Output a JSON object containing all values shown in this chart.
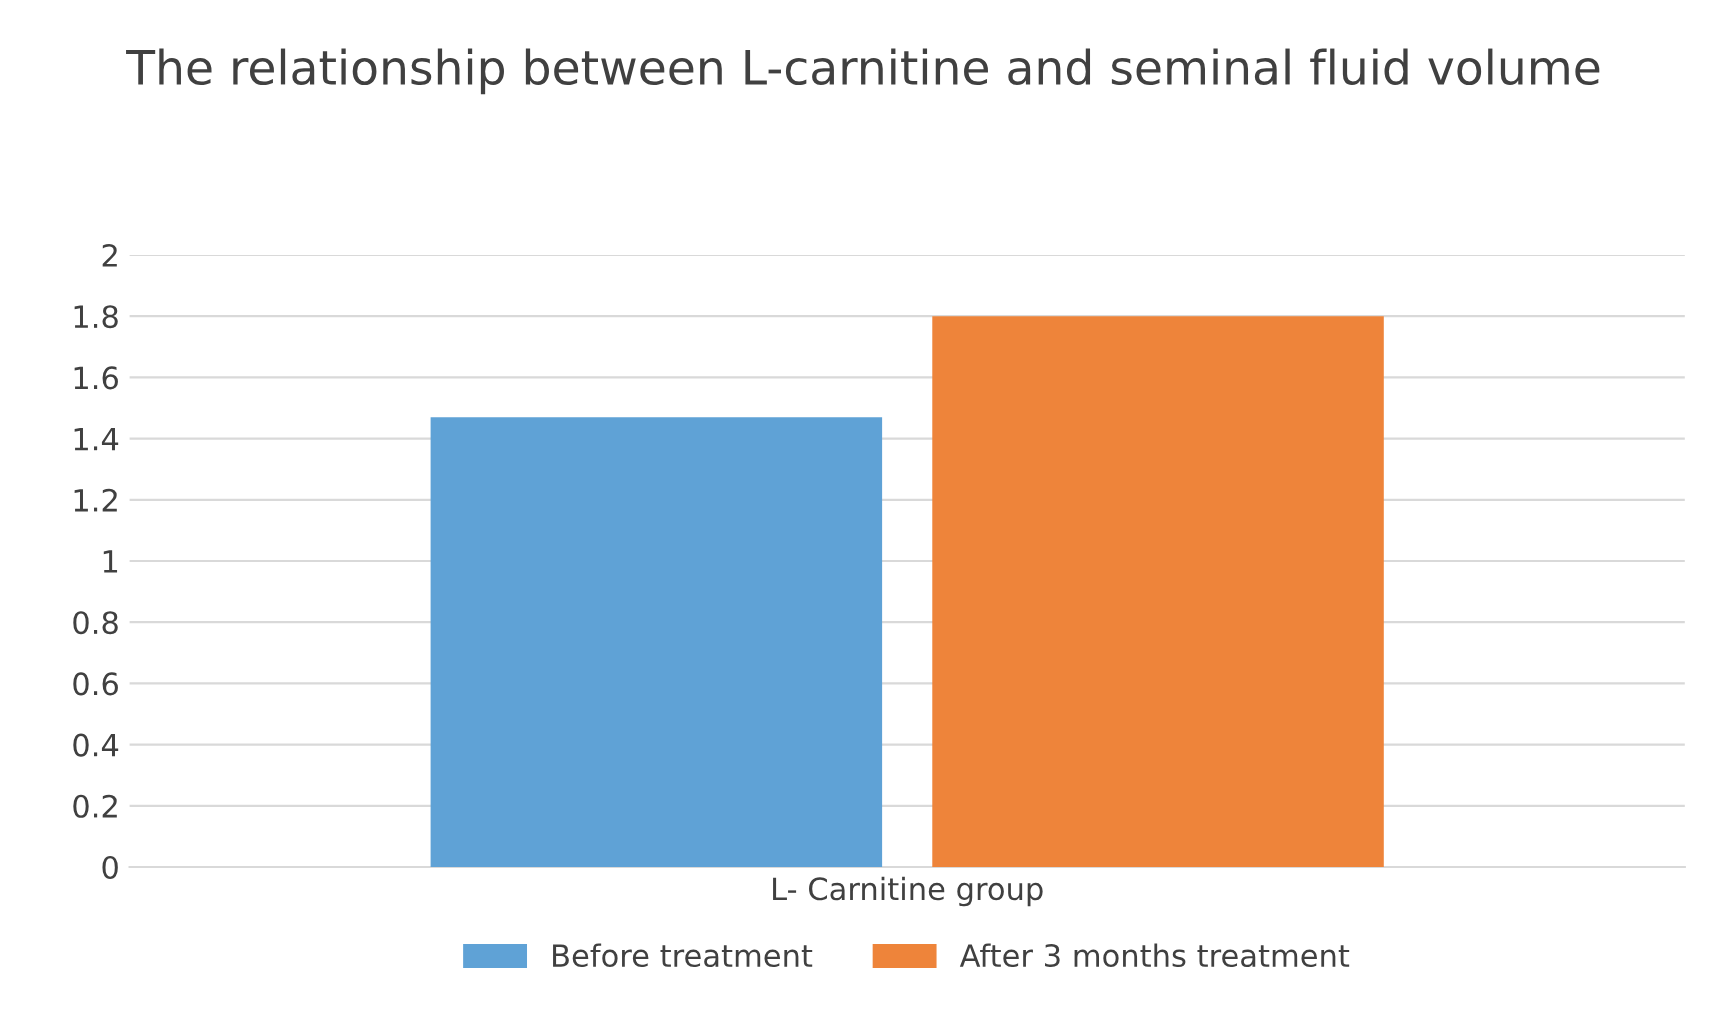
{
  "chart_data": {
    "type": "bar",
    "title": "The relationship between L-carnitine and seminal fluid volume",
    "categories": [
      "L- Carnitine group"
    ],
    "series": [
      {
        "name": "Before treatment",
        "color": "#5fa2d6",
        "values": [
          1.47
        ]
      },
      {
        "name": "After 3 months treatment",
        "color": "#ee843a",
        "values": [
          1.8
        ]
      }
    ],
    "ylim": [
      0,
      2
    ],
    "yticks": [
      0,
      0.2,
      0.4,
      0.6,
      0.8,
      1,
      1.2,
      1.4,
      1.6,
      1.8,
      2
    ],
    "grid": "y",
    "legend": "bottom"
  }
}
